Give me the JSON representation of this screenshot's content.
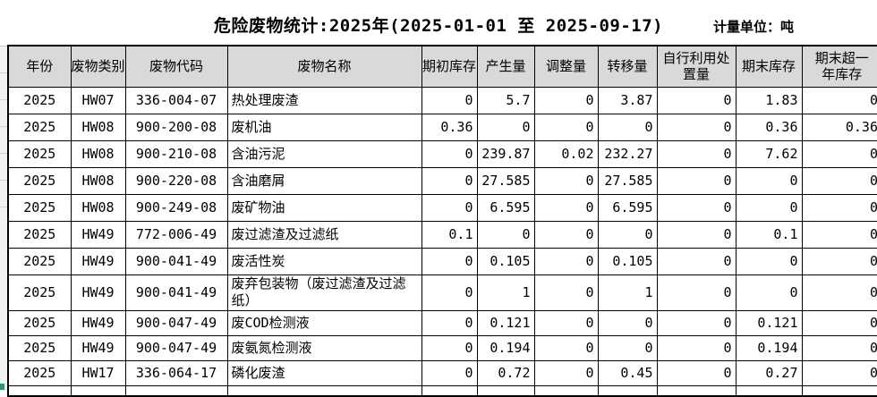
{
  "title": "危险废物统计:2025年(2025-01-01 至 2025-09-17)",
  "unit_label": "计量单位：吨",
  "colors": {
    "header_bg": "#d9d9d9",
    "border": "#000000",
    "selection_green": "#1e9e62"
  },
  "table": {
    "columns": [
      "年份",
      "废物类别",
      "废物代码",
      "废物名称",
      "期初库存",
      "产生量",
      "调整量",
      "转移量",
      "自行利用处\n置量",
      "期末库存",
      "期末超一\n年库存"
    ],
    "rows": [
      [
        "2025",
        "HW07",
        "336-004-07",
        "热处理废渣",
        "0",
        "5.7",
        "0",
        "3.87",
        "0",
        "1.83",
        "0"
      ],
      [
        "2025",
        "HW08",
        "900-200-08",
        "废机油",
        "0.36",
        "0",
        "0",
        "0",
        "0",
        "0.36",
        "0.36"
      ],
      [
        "2025",
        "HW08",
        "900-210-08",
        "含油污泥",
        "0",
        "239.87",
        "0.02",
        "232.27",
        "0",
        "7.62",
        "0"
      ],
      [
        "2025",
        "HW08",
        "900-220-08",
        "含油磨屑",
        "0",
        "27.585",
        "0",
        "27.585",
        "0",
        "0",
        "0"
      ],
      [
        "2025",
        "HW08",
        "900-249-08",
        "废矿物油",
        "0",
        "6.595",
        "0",
        "6.595",
        "0",
        "0",
        "0"
      ],
      [
        "2025",
        "HW49",
        "772-006-49",
        "废过滤渣及过滤纸",
        "0.1",
        "0",
        "0",
        "0",
        "0",
        "0.1",
        "0"
      ],
      [
        "2025",
        "HW49",
        "900-041-49",
        "废活性炭",
        "0",
        "0.105",
        "0",
        "0.105",
        "0",
        "0",
        "0"
      ],
      [
        "2025",
        "HW49",
        "900-041-49",
        "废弃包装物（废过滤渣及过滤纸）",
        "0",
        "1",
        "0",
        "1",
        "0",
        "0",
        "0"
      ],
      [
        "2025",
        "HW49",
        "900-047-49",
        "废COD检测液",
        "0",
        "0.121",
        "0",
        "0",
        "0",
        "0.121",
        "0"
      ],
      [
        "2025",
        "HW49",
        "900-047-49",
        "废氨氮检测液",
        "0",
        "0.194",
        "0",
        "0",
        "0",
        "0.194",
        "0"
      ],
      [
        "2025",
        "HW17",
        "336-064-17",
        "磷化废渣",
        "0",
        "0.72",
        "0",
        "0.45",
        "0",
        "0.27",
        "0"
      ]
    ]
  }
}
